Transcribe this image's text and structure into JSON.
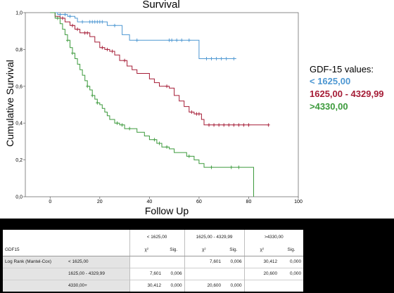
{
  "chart_data": {
    "type": "line",
    "step": true,
    "title": "Survival",
    "xlabel": "Follow Up",
    "ylabel": "Cumulative Survival",
    "xlim": [
      -10,
      100
    ],
    "ylim": [
      0,
      1.0
    ],
    "x_ticks": [
      "0",
      "20",
      "40",
      "60",
      "80",
      "100"
    ],
    "y_ticks": [
      "0,0",
      "0,2",
      "0,4",
      "0,6",
      "0,8",
      "1,0"
    ],
    "grid": false,
    "legend": {
      "title": "GDF-15 values:",
      "position": "right",
      "items": [
        "< 1625,00",
        "1625,00 - 4329,99",
        ">4330,00"
      ]
    },
    "series": [
      {
        "name": "< 1625,00",
        "color": "#4d97d2",
        "x": [
          0,
          3,
          7,
          10,
          11,
          14,
          22,
          23,
          29,
          32,
          59,
          60,
          75
        ],
        "y": [
          1.0,
          0.99,
          0.98,
          0.97,
          0.95,
          0.95,
          0.95,
          0.93,
          0.88,
          0.85,
          0.85,
          0.75,
          0.75
        ],
        "censored_x": [
          4,
          6,
          8,
          13,
          16,
          17,
          18,
          19,
          20,
          21,
          26,
          35,
          48,
          49,
          51,
          53,
          56,
          63,
          65,
          67,
          69,
          71,
          74
        ]
      },
      {
        "name": "1625,00 - 4329,99",
        "color": "#a51c36",
        "x": [
          0,
          2,
          4,
          6,
          8,
          10,
          12,
          16,
          18,
          20,
          22,
          24,
          26,
          28,
          31,
          33,
          35,
          40,
          42,
          44,
          48,
          50,
          52,
          54,
          56,
          58,
          61,
          62,
          88
        ],
        "y": [
          1.0,
          0.98,
          0.97,
          0.95,
          0.93,
          0.91,
          0.89,
          0.87,
          0.84,
          0.81,
          0.8,
          0.79,
          0.77,
          0.74,
          0.71,
          0.69,
          0.67,
          0.64,
          0.62,
          0.6,
          0.59,
          0.55,
          0.52,
          0.49,
          0.46,
          0.45,
          0.42,
          0.39,
          0.39
        ],
        "censored_x": [
          5,
          9,
          11,
          14,
          15,
          21,
          23,
          25,
          30,
          47,
          57,
          59,
          60,
          64,
          66,
          68,
          70,
          72,
          74,
          76,
          78,
          80,
          88
        ]
      },
      {
        "name": ">4330,00",
        "color": "#3c9a3c",
        "x": [
          0,
          2,
          4,
          5,
          6,
          7,
          8,
          9,
          10,
          11,
          12,
          13,
          14,
          15,
          16,
          17,
          18,
          19,
          20,
          21,
          22,
          23,
          24,
          26,
          28,
          30,
          33,
          35,
          38,
          40,
          43,
          45,
          48,
          50,
          55,
          58,
          60,
          62,
          80,
          82
        ],
        "y": [
          1.0,
          0.97,
          0.94,
          0.91,
          0.88,
          0.85,
          0.81,
          0.78,
          0.75,
          0.72,
          0.69,
          0.66,
          0.63,
          0.6,
          0.58,
          0.55,
          0.53,
          0.51,
          0.5,
          0.48,
          0.46,
          0.44,
          0.42,
          0.4,
          0.39,
          0.37,
          0.37,
          0.35,
          0.33,
          0.31,
          0.29,
          0.27,
          0.26,
          0.24,
          0.22,
          0.2,
          0.18,
          0.16,
          0.16,
          0.0
        ],
        "censored_x": [
          3,
          7,
          9,
          15,
          17,
          19,
          27,
          29,
          32,
          42,
          44,
          47,
          56,
          65,
          73,
          76
        ]
      }
    ]
  },
  "stats_table": {
    "group_headers": [
      "< 1625,00",
      "1625,00 - 4329,99",
      ">4330,00"
    ],
    "row_title": "GDF15",
    "chi_label": "χ²",
    "sig_label": "Sig.",
    "test_label": "Log Rank (Mantel-Cox)",
    "rows": [
      {
        "label": "< 1625,00",
        "cells": [
          "",
          "",
          "7,601",
          "0,006",
          "30,412",
          "0,000"
        ]
      },
      {
        "label": "1625,00 - 4329,99",
        "cells": [
          "7,601",
          "0,006",
          "",
          "",
          "20,600",
          "0,000"
        ]
      },
      {
        "label": "4330,00+",
        "cells": [
          "30,412",
          "0,000",
          "20,600",
          "0,000",
          "",
          ""
        ]
      }
    ]
  }
}
